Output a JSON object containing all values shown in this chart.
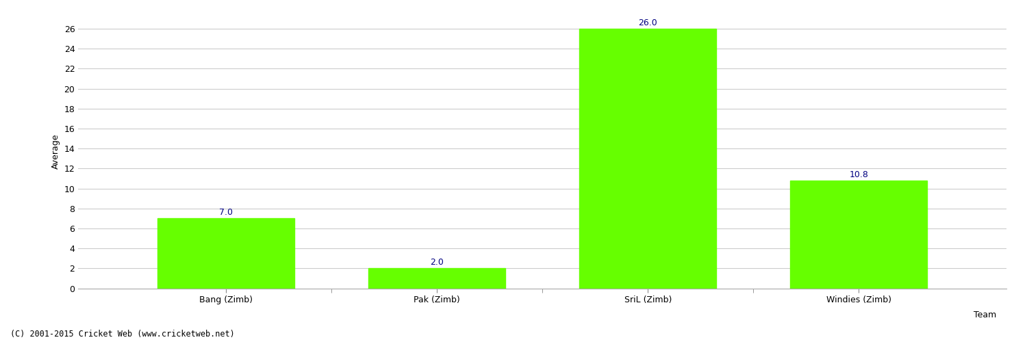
{
  "categories": [
    "Bang (Zimb)",
    "Pak (Zimb)",
    "SriL (Zimb)",
    "Windies (Zimb)"
  ],
  "values": [
    7.0,
    2.0,
    26.0,
    10.8
  ],
  "bar_color": "#66ff00",
  "bar_edge_color": "#66ff00",
  "ylabel": "Average",
  "xlabel": "Team",
  "ylim": [
    0,
    27.5
  ],
  "yticks": [
    0,
    2,
    4,
    6,
    8,
    10,
    12,
    14,
    16,
    18,
    20,
    22,
    24,
    26
  ],
  "label_color": "#000080",
  "label_fontsize": 9,
  "xlabel_fontsize": 9,
  "ylabel_fontsize": 9,
  "xtick_fontsize": 9,
  "ytick_fontsize": 9,
  "grid_color": "#cccccc",
  "background_color": "#ffffff",
  "footer_text": "(C) 2001-2015 Cricket Web (www.cricketweb.net)",
  "footer_fontsize": 8.5,
  "bar_width": 0.65
}
